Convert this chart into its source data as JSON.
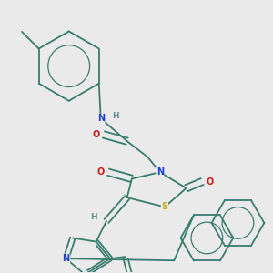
{
  "bg_color": "#eaeaea",
  "bond_color": "#3a7d6e",
  "atom_colors": {
    "N": "#1a3fcc",
    "O": "#cc1a1a",
    "S": "#ccaa00",
    "H": "#6a8a90"
  },
  "lw": 1.3,
  "dbo": 0.008
}
